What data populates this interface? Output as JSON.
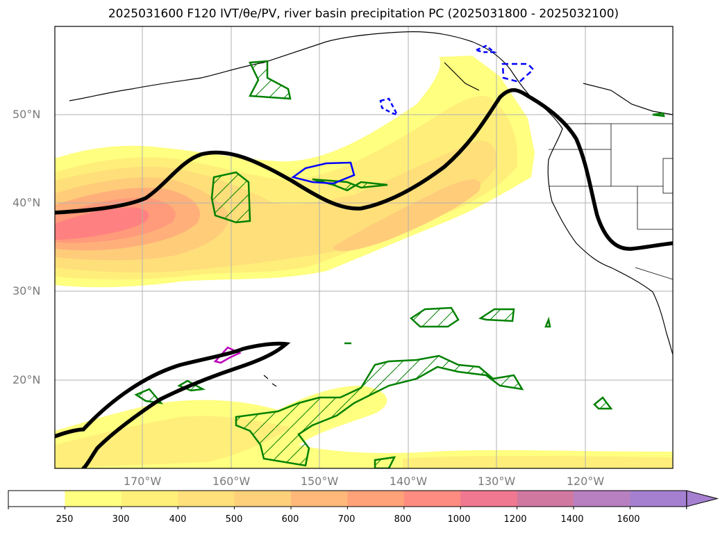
{
  "figure": {
    "title": "2025031600 F120 IVT/θe/PV, river basin precipitation PC (2025031800 - 2025032100)"
  },
  "map": {
    "lat_labels": [
      "50°N",
      "40°N",
      "30°N",
      "20°N"
    ],
    "lon_labels": [
      "170°W",
      "160°W",
      "150°W",
      "140°W",
      "130°W",
      "120°W"
    ],
    "field_colors": {
      "ivt_250": "#ffff80",
      "ivt_300": "#fff07a",
      "ivt_400": "#ffdf7a",
      "ivt_500": "#ffcc7a",
      "ivt_600": "#ffb07a",
      "ivt_700": "#ff9a7a",
      "ivt_800": "#ff8080",
      "theta_e_contour": "#000000",
      "pv_positive": "#008000",
      "pv_negative": "#0000ff",
      "precip_pc": "#bb00bb"
    }
  },
  "colorbar": {
    "levels": [
      "250",
      "300",
      "400",
      "500",
      "600",
      "700",
      "800",
      "1000",
      "1200",
      "1400",
      "1600"
    ],
    "colors": [
      "#ffffff",
      "#ffff80",
      "#fff07a",
      "#ffe07a",
      "#ffd07a",
      "#ffb87a",
      "#ffa27a",
      "#ff8c80",
      "#f07890",
      "#d078a0",
      "#b880c0",
      "#a580d0"
    ],
    "extend": "max"
  }
}
